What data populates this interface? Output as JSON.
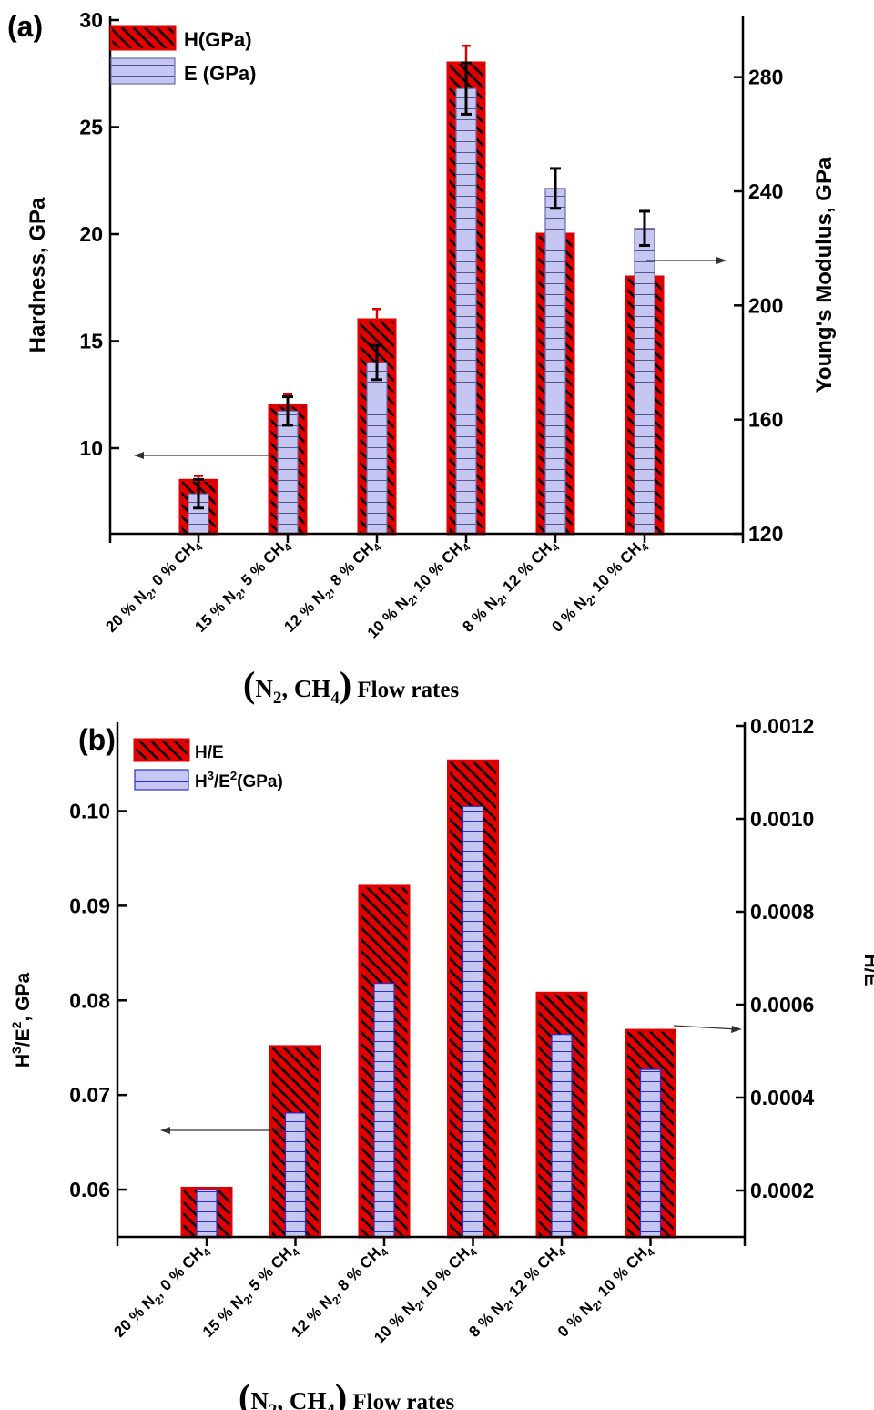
{
  "chart_data": [
    {
      "type": "bar",
      "panel_label": "(a)",
      "categories": [
        {
          "p1": "20 % N",
          "p2": ", 0 % CH"
        },
        {
          "p1": "15 % N",
          "p2": ", 5 % CH"
        },
        {
          "p1": "12 % N",
          "p2": ", 8 % CH"
        },
        {
          "p1": "10 % N",
          "p2": ", 10 % CH"
        },
        {
          "p1": "8 % N",
          "p2": ", 12 % CH"
        },
        {
          "p1": "0 % N",
          "p2": ", 10 % CH"
        }
      ],
      "series": [
        {
          "name": "H(GPa)",
          "axis": "left",
          "values": [
            8.5,
            12.0,
            16.0,
            28.0,
            20.0,
            18.0
          ],
          "err_up": [
            0.2,
            0.5,
            0.5,
            0.8,
            0,
            0
          ],
          "color": "#e00000",
          "pattern": "hatch"
        },
        {
          "name": "E (GPa)",
          "axis": "right",
          "values": [
            134,
            163,
            180,
            276,
            241,
            227
          ],
          "err": [
            5,
            5,
            6,
            9,
            7,
            6
          ],
          "color": "#c5c5f0",
          "pattern": "horizontal-lines"
        }
      ],
      "left_axis": {
        "label": "Hardness, GPa",
        "ylim": [
          6,
          30
        ],
        "ticks": [
          10,
          15,
          20,
          25,
          30
        ]
      },
      "right_axis": {
        "label": "Young's Modulus, GPa",
        "ylim": [
          120,
          300
        ],
        "ticks": [
          120,
          160,
          200,
          240,
          280
        ]
      },
      "xlabel": {
        "open": "(",
        "n": "N",
        "n_sub": "2",
        "mid": ", CH",
        "ch_sub": "4",
        "close": ")",
        "rest": " Flow rates"
      },
      "legend": "top-left"
    },
    {
      "type": "bar",
      "panel_label": "(b)",
      "categories": [
        {
          "p1": "20 % N",
          "p2": ", 0 % CH"
        },
        {
          "p1": "15 % N",
          "p2": ", 5 % CH"
        },
        {
          "p1": "12 % N",
          "p2": ", 8 % CH"
        },
        {
          "p1": "10 % N",
          "p2": ", 10 % CH"
        },
        {
          "p1": "8 % N",
          "p2": ", 12 % CH"
        },
        {
          "p1": "0 % N",
          "p2": ", 10 % CH"
        }
      ],
      "series": [
        {
          "name": "H/E",
          "axis": "right",
          "values": [
            0.000205,
            0.00051,
            0.000855,
            0.001125,
            0.000625,
            0.000545
          ],
          "color": "#e00000",
          "pattern": "hatch"
        },
        {
          "name_main": "H",
          "name_sup1": "3",
          "name_mid": "/E",
          "name_sup2": "2",
          "name_rest": "(GPa)",
          "axis": "left",
          "values": [
            0.06,
            0.0681,
            0.0818,
            0.1005,
            0.0764,
            0.0727
          ],
          "color": "#c5c5f0",
          "pattern": "horizontal-lines"
        }
      ],
      "left_axis": {
        "label_main": "H",
        "label_sup1": "3",
        "label_mid": "/E",
        "label_sup2": "2",
        "label_rest": ", GPa",
        "ylim": [
          0.055,
          0.109
        ],
        "ticks": [
          "0.06",
          "0.07",
          "0.08",
          "0.09",
          "0.10"
        ]
      },
      "right_axis": {
        "label": "H/E",
        "ylim": [
          0.0001,
          0.0012
        ],
        "ticks": [
          "0.0002",
          "0.0004",
          "0.0006",
          "0.0008",
          "0.0010",
          "0.0012"
        ]
      },
      "xlabel": {
        "open": "(",
        "n": "N",
        "n_sub": "2",
        "mid": ", CH",
        "ch_sub": "4",
        "close": ")",
        "rest": " Flow rates"
      },
      "legend": "top-left"
    }
  ]
}
